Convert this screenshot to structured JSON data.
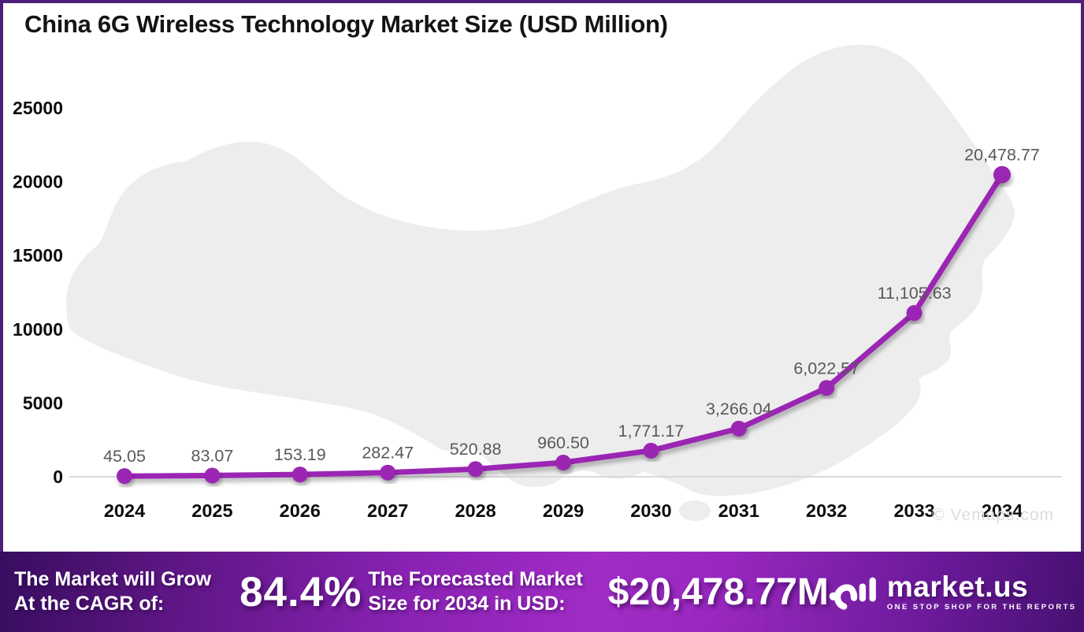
{
  "title": "China 6G Wireless Technology Market Size (USD Million)",
  "watermark": "© Vemaps.com",
  "chart_data": {
    "type": "line",
    "categories": [
      "2024",
      "2025",
      "2026",
      "2027",
      "2028",
      "2029",
      "2030",
      "2031",
      "2032",
      "2033",
      "2034"
    ],
    "values": [
      45.05,
      83.07,
      153.19,
      282.47,
      520.88,
      960.5,
      1771.17,
      3266.04,
      6022.57,
      11105.63,
      20478.77
    ],
    "point_labels": [
      "45.05",
      "83.07",
      "153.19",
      "282.47",
      "520.88",
      "960.50",
      "1,771.17",
      "3,266.04",
      "6,022.57",
      "11,105.63",
      "20,478.77"
    ],
    "title": "China 6G Wireless Technology Market Size (USD Million)",
    "xlabel": "",
    "ylabel": "",
    "ylim": [
      0,
      25000
    ],
    "yticks": [
      0,
      5000,
      10000,
      15000,
      20000,
      25000
    ],
    "grid": false,
    "legend": false,
    "line_color": "#9B27B3",
    "marker_color": "#9B27B3",
    "label_color": "#595959",
    "axis_tick_color": "#0d0d0d",
    "baseline_color": "#d9d9d9",
    "background_map": "china-silhouette",
    "map_color": "#ededed"
  },
  "footer": {
    "cagr_label_line1": "The Market will Grow",
    "cagr_label_line2": "At the CAGR of:",
    "cagr_value": "84.4%",
    "forecast_label_line1": "The Forecasted Market",
    "forecast_label_line2": "Size for 2034 in USD:",
    "forecast_value": "$20,478.77M",
    "brand": "market.us",
    "brand_tagline": "ONE STOP SHOP FOR THE REPORTS"
  }
}
